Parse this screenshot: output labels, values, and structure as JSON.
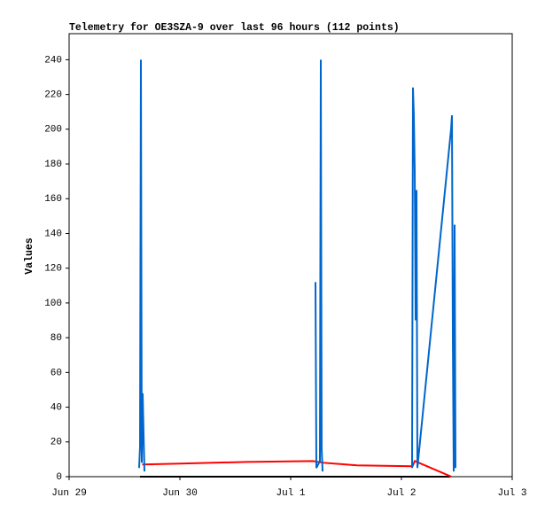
{
  "chart_data": {
    "type": "line",
    "title": "Telemetry for OE3SZA-9 over last 96 hours (112 points)",
    "y_label": "Values",
    "xlim": [
      0,
      4
    ],
    "xticks": [
      {
        "value": 0,
        "label": "Jun 29"
      },
      {
        "value": 1,
        "label": "Jun 30"
      },
      {
        "value": 2,
        "label": "Jul 1"
      },
      {
        "value": 3,
        "label": "Jul 2"
      },
      {
        "value": 4,
        "label": "Jul 3"
      }
    ],
    "ylim": [
      0,
      255
    ],
    "yticks": [
      0,
      20,
      40,
      60,
      80,
      100,
      120,
      140,
      160,
      180,
      200,
      220,
      240
    ],
    "grid": false,
    "series": [
      {
        "color": "#000000",
        "x": [
          0.64,
          3.44
        ],
        "values": [
          0,
          0
        ]
      },
      {
        "color": "#ff0000",
        "x": [
          0.66,
          1.0,
          1.6,
          2.2,
          2.3,
          2.6,
          3.1,
          3.12,
          3.45
        ],
        "values": [
          7,
          7.5,
          8.5,
          9,
          8,
          6.5,
          6,
          9,
          0
        ]
      },
      {
        "color": "#0066cc",
        "x": [
          0.632,
          0.64,
          0.648,
          0.656,
          0.664,
          0.672,
          0.68,
          1.5,
          2.224,
          2.232,
          2.264,
          2.272,
          2.28,
          2.288,
          2.7,
          3.096,
          3.104,
          3.112,
          3.12,
          3.128,
          3.136,
          3.144,
          3.448,
          3.456,
          3.464,
          3.472,
          3.48,
          3.488
        ],
        "values": [
          5,
          17,
          240,
          8,
          48,
          25,
          3,
          null,
          112,
          5,
          9,
          240,
          16,
          3,
          null,
          5,
          224,
          208,
          176,
          90,
          165,
          5,
          200,
          208,
          80,
          3,
          145,
          5
        ]
      }
    ]
  }
}
